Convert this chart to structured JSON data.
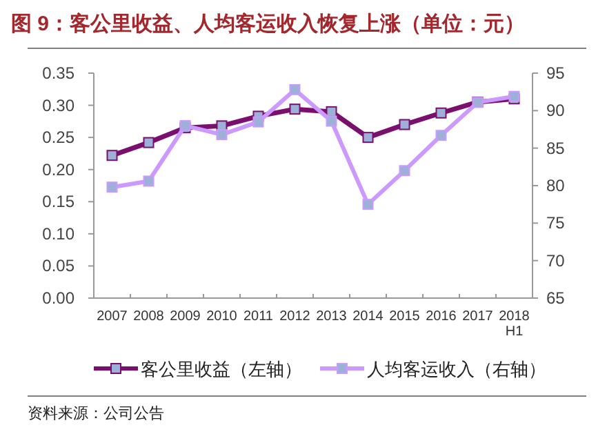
{
  "chart_data": {
    "type": "line",
    "title": "图 9：客公里收益、人均客运收入恢复上涨（单位：元）",
    "categories": [
      "2007",
      "2008",
      "2009",
      "2010",
      "2011",
      "2012",
      "2013",
      "2014",
      "2015",
      "2016",
      "2017",
      "2018 H1"
    ],
    "series": [
      {
        "name": "客公里收益（左轴）",
        "color": "#7b0f6e",
        "values": [
          0.222,
          0.242,
          0.265,
          0.268,
          0.283,
          0.294,
          0.29,
          0.25,
          0.27,
          0.288,
          0.305,
          0.31
        ]
      },
      {
        "name": "人均客运收入（右轴）",
        "color": "#cc99ff",
        "axis": "y2",
        "values": [
          79.8,
          80.6,
          88.0,
          86.8,
          88.5,
          92.8,
          88.6,
          77.5,
          82.0,
          86.7,
          91.1,
          91.9
        ]
      }
    ],
    "ylim": [
      0,
      0.35
    ],
    "yticks": [
      {
        "value": 0,
        "label": "0.00"
      },
      {
        "value": 0.05,
        "label": "0.05"
      },
      {
        "value": 0.1,
        "label": "0.10"
      },
      {
        "value": 0.15,
        "label": "0.15"
      },
      {
        "value": 0.2,
        "label": "0.20"
      },
      {
        "value": 0.25,
        "label": "0.25"
      },
      {
        "value": 0.3,
        "label": "0.30"
      },
      {
        "value": 0.35,
        "label": "0.35"
      }
    ],
    "y2lim": [
      65,
      95
    ],
    "y2ticks": [
      65,
      70,
      75,
      80,
      85,
      90,
      95
    ],
    "marker": "square",
    "legend": "bottom",
    "annotations": [
      "资料来源：公司公告"
    ]
  }
}
